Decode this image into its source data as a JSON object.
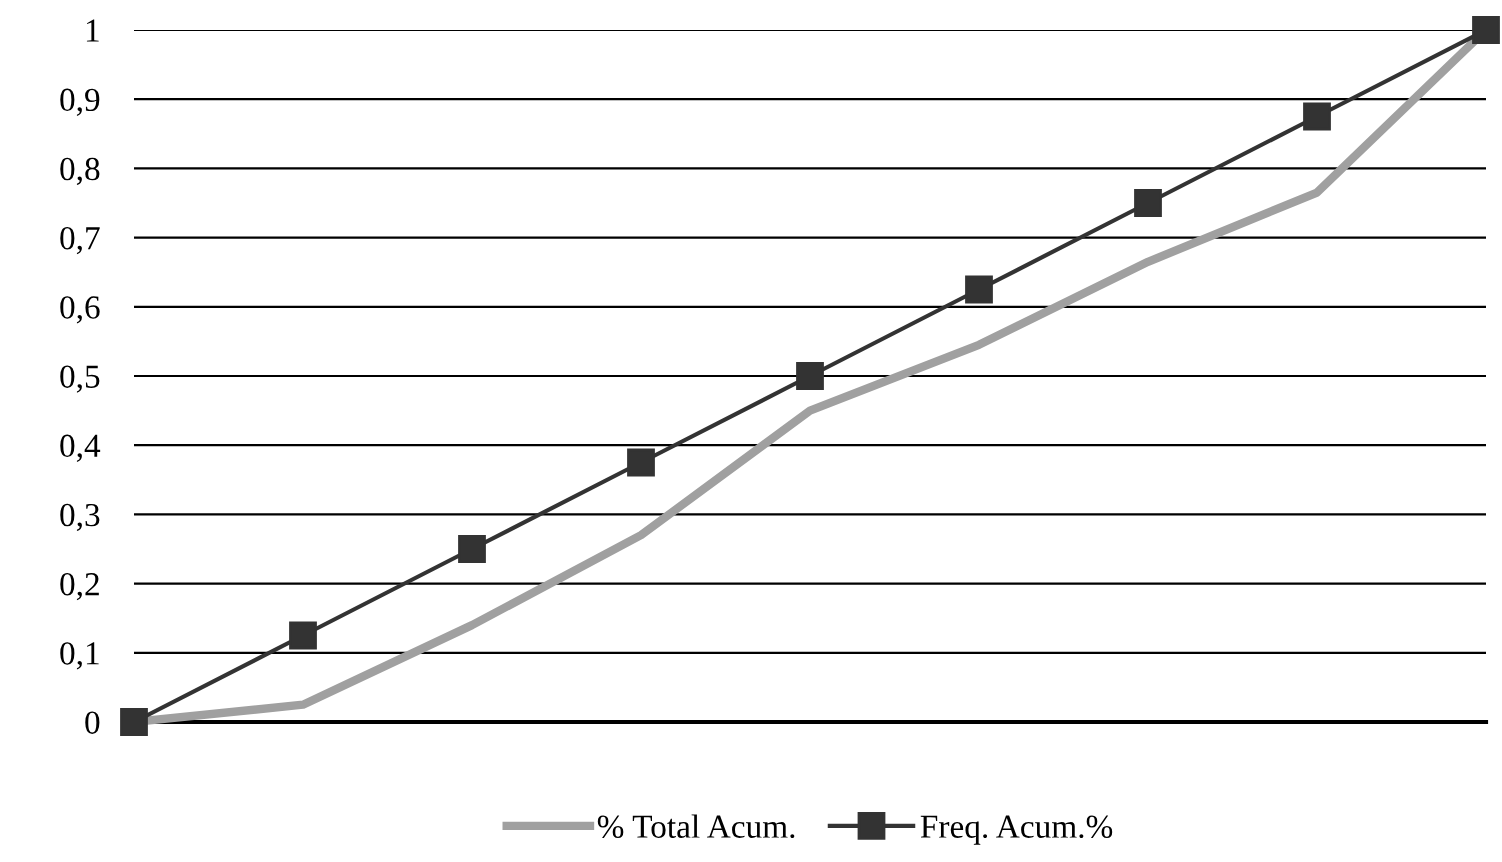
{
  "chart_data": {
    "type": "line",
    "categories": [
      null,
      null,
      null,
      null,
      null,
      null,
      null,
      null,
      null
    ],
    "series": [
      {
        "name": "% Total Acum.",
        "color": "#a0a0a0",
        "values": [
          0,
          0.025,
          0.14,
          0.27,
          0.45,
          0.545,
          0.665,
          0.765,
          1
        ],
        "marker": "none"
      },
      {
        "name": "Freq. Acum.%",
        "color": "#333333",
        "values": [
          0,
          0.125,
          0.25,
          0.375,
          0.5,
          0.625,
          0.75,
          0.875,
          1
        ],
        "marker": "square"
      }
    ],
    "ylim": [
      0,
      1
    ],
    "yticks": [
      0,
      {
        "value": 0.1,
        "label": "0,1"
      },
      {
        "value": 0.2,
        "label": "0,2"
      },
      {
        "value": 0.3,
        "label": "0,3"
      },
      {
        "value": 0.4,
        "label": "0,4"
      },
      {
        "value": 0.5,
        "label": "0,5"
      },
      {
        "value": 0.6,
        "label": "0,6"
      },
      {
        "value": 0.7,
        "label": "0,7"
      },
      {
        "value": 0.8,
        "label": "0,8"
      },
      {
        "value": 0.9,
        "label": "0,9"
      },
      1
    ],
    "grid": "y",
    "legend": "bottom",
    "tick_labels": "y",
    "line_style": "solid"
  }
}
